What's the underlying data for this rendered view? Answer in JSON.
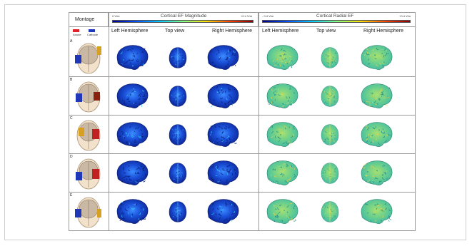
{
  "headers": {
    "montage": "Montage",
    "magnitude_min": "0 V/m",
    "magnitude_title": "Cortical EF Magnitude",
    "magnitude_max": "+0.4 V/m",
    "radial_min": "- 0.4 V/m",
    "radial_title": "Cortical Radial EF",
    "radial_max": "+0.4 V/m"
  },
  "subheaders": {
    "mag_left": "Left Hemisphere",
    "mag_top": "Top view",
    "mag_right": "Right Hemisphere",
    "rad_left": "Left Hemisphere",
    "rad_top": "Top view",
    "rad_right": "Right Hemisphere"
  },
  "legend": {
    "anode": "Anode",
    "cathode": "Cathode",
    "anode_color": "#e0202a",
    "cathode_color": "#2038b8"
  },
  "rows": [
    "A",
    "B",
    "C",
    "D",
    "E"
  ],
  "colors": {
    "magnitude_bar": [
      "#00008b",
      "#0050ff",
      "#00c8ff",
      "#80ff80",
      "#ffe000",
      "#ff4000",
      "#8b0000"
    ],
    "radial_bar": [
      "#00008b",
      "#0050ff",
      "#00c8ff",
      "#80ff80",
      "#ffe000",
      "#ff4000",
      "#8b0000"
    ]
  }
}
